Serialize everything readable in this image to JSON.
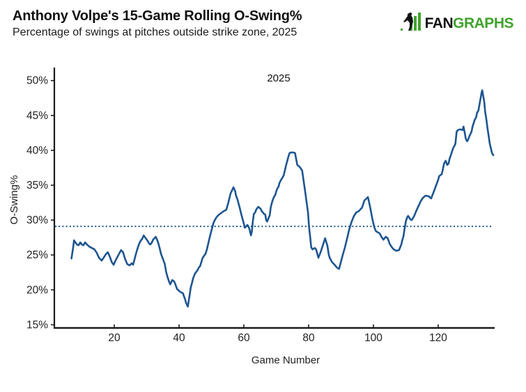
{
  "header": {
    "title": "Anthony Volpe's 15-Game Rolling O-Swing%",
    "subtitle": "Percentage of swings at pitches outside strike zone, 2025",
    "logo": {
      "fan": "FAN",
      "graphs": "GRAPHS",
      "green": "#3fa32c",
      "black": "#111111"
    }
  },
  "chart_data": {
    "type": "line",
    "legend_label": "2025",
    "xlabel": "Game Number",
    "ylabel": "O-Swing%",
    "x_tick_values": [
      20,
      40,
      60,
      80,
      100,
      120
    ],
    "x_tick_labels": [
      "20",
      "40",
      "60",
      "80",
      "100",
      "120"
    ],
    "y_tick_values": [
      15,
      20,
      25,
      30,
      35,
      40,
      45,
      50
    ],
    "y_tick_labels": [
      "15%",
      "20%",
      "25%",
      "30%",
      "35%",
      "40%",
      "45%",
      "50%"
    ],
    "xlim": [
      2,
      138
    ],
    "ylim": [
      14.5,
      52
    ],
    "grid": false,
    "average_line": {
      "value": 29.1,
      "style": "dotted",
      "color": "#1d5591"
    },
    "series": [
      {
        "name": "2025",
        "color": "#1d5591",
        "points": [
          [
            6.8,
            24.5
          ],
          [
            7.3,
            26.0
          ],
          [
            7.6,
            27.1
          ],
          [
            8.0,
            26.8
          ],
          [
            8.5,
            26.5
          ],
          [
            9.0,
            26.4
          ],
          [
            9.5,
            26.8
          ],
          [
            10.0,
            26.5
          ],
          [
            10.5,
            26.4
          ],
          [
            11.0,
            26.8
          ],
          [
            11.6,
            26.5
          ],
          [
            12.3,
            26.2
          ],
          [
            13.1,
            26.0
          ],
          [
            13.9,
            25.8
          ],
          [
            14.6,
            25.3
          ],
          [
            15.3,
            24.6
          ],
          [
            16.1,
            24.2
          ],
          [
            16.7,
            24.6
          ],
          [
            17.4,
            25.1
          ],
          [
            18.0,
            25.4
          ],
          [
            18.6,
            24.8
          ],
          [
            19.2,
            24.0
          ],
          [
            19.8,
            23.6
          ],
          [
            20.5,
            24.3
          ],
          [
            21.3,
            25.0
          ],
          [
            22.1,
            25.7
          ],
          [
            22.7,
            25.4
          ],
          [
            23.3,
            24.5
          ],
          [
            24.0,
            23.7
          ],
          [
            24.7,
            23.5
          ],
          [
            25.4,
            23.8
          ],
          [
            25.8,
            23.6
          ],
          [
            26.1,
            24.1
          ],
          [
            26.6,
            25.0
          ],
          [
            27.1,
            25.8
          ],
          [
            27.6,
            26.5
          ],
          [
            28.1,
            27.0
          ],
          [
            28.6,
            27.3
          ],
          [
            29.1,
            27.8
          ],
          [
            29.7,
            27.4
          ],
          [
            30.2,
            27.1
          ],
          [
            30.7,
            26.7
          ],
          [
            31.1,
            26.5
          ],
          [
            31.5,
            26.7
          ],
          [
            32.0,
            27.2
          ],
          [
            32.4,
            27.4
          ],
          [
            32.8,
            27.6
          ],
          [
            33.2,
            27.2
          ],
          [
            33.6,
            26.7
          ],
          [
            34.0,
            26.0
          ],
          [
            34.4,
            25.2
          ],
          [
            34.8,
            24.7
          ],
          [
            35.2,
            24.2
          ],
          [
            35.6,
            23.7
          ],
          [
            36.0,
            22.6
          ],
          [
            36.4,
            21.9
          ],
          [
            36.9,
            21.2
          ],
          [
            37.3,
            20.8
          ],
          [
            37.9,
            21.4
          ],
          [
            38.3,
            21.3
          ],
          [
            38.7,
            21.0
          ],
          [
            39.0,
            20.6
          ],
          [
            39.4,
            20.1
          ],
          [
            39.7,
            20.0
          ],
          [
            40.1,
            19.8
          ],
          [
            40.8,
            19.6
          ],
          [
            41.2,
            19.5
          ],
          [
            41.5,
            19.1
          ],
          [
            41.9,
            18.6
          ],
          [
            42.2,
            18.1
          ],
          [
            42.7,
            17.6
          ],
          [
            43.3,
            19.3
          ],
          [
            43.6,
            20.3
          ],
          [
            44.0,
            21.0
          ],
          [
            44.3,
            21.6
          ],
          [
            44.7,
            22.1
          ],
          [
            45.0,
            22.4
          ],
          [
            45.7,
            22.8
          ],
          [
            46.1,
            23.2
          ],
          [
            46.5,
            23.4
          ],
          [
            46.9,
            24.0
          ],
          [
            47.2,
            24.5
          ],
          [
            47.6,
            24.8
          ],
          [
            48.2,
            25.2
          ],
          [
            48.6,
            25.8
          ],
          [
            49.3,
            27.2
          ],
          [
            50.0,
            28.5
          ],
          [
            50.7,
            29.7
          ],
          [
            51.4,
            30.3
          ],
          [
            52.1,
            30.7
          ],
          [
            53.5,
            31.2
          ],
          [
            54.6,
            31.5
          ],
          [
            55.2,
            32.5
          ],
          [
            55.9,
            33.8
          ],
          [
            56.8,
            34.7
          ],
          [
            57.3,
            34.2
          ],
          [
            57.6,
            33.5
          ],
          [
            58.0,
            33.0
          ],
          [
            58.3,
            32.5
          ],
          [
            58.7,
            31.8
          ],
          [
            59.0,
            31.2
          ],
          [
            59.3,
            30.7
          ],
          [
            59.7,
            30.0
          ],
          [
            60.0,
            29.5
          ],
          [
            60.3,
            28.9
          ],
          [
            61.1,
            29.3
          ],
          [
            61.4,
            29.1
          ],
          [
            61.8,
            28.6
          ],
          [
            62.2,
            27.8
          ],
          [
            62.5,
            28.4
          ],
          [
            62.8,
            29.9
          ],
          [
            63.1,
            30.9
          ],
          [
            63.5,
            31.1
          ],
          [
            63.8,
            31.5
          ],
          [
            64.1,
            31.7
          ],
          [
            64.5,
            31.9
          ],
          [
            65.2,
            31.6
          ],
          [
            65.5,
            31.3
          ],
          [
            65.9,
            31.1
          ],
          [
            66.2,
            30.9
          ],
          [
            66.6,
            30.8
          ],
          [
            66.9,
            30.0
          ],
          [
            67.2,
            29.8
          ],
          [
            68.0,
            30.7
          ],
          [
            68.3,
            31.8
          ],
          [
            68.6,
            32.4
          ],
          [
            69.0,
            33.0
          ],
          [
            69.3,
            33.3
          ],
          [
            69.7,
            33.6
          ],
          [
            70.0,
            34.1
          ],
          [
            70.3,
            34.5
          ],
          [
            70.7,
            34.8
          ],
          [
            71.0,
            35.3
          ],
          [
            71.3,
            35.6
          ],
          [
            72.3,
            36.4
          ],
          [
            73.0,
            37.8
          ],
          [
            73.7,
            39.0
          ],
          [
            74.1,
            39.6
          ],
          [
            74.6,
            39.7
          ],
          [
            75.2,
            39.7
          ],
          [
            75.8,
            39.6
          ],
          [
            76.5,
            37.9
          ],
          [
            77.3,
            37.6
          ],
          [
            78.0,
            37.1
          ],
          [
            79.0,
            33.8
          ],
          [
            79.8,
            31.1
          ],
          [
            80.1,
            29.1
          ],
          [
            80.5,
            27.5
          ],
          [
            80.8,
            26.1
          ],
          [
            81.2,
            25.8
          ],
          [
            81.9,
            26.0
          ],
          [
            82.3,
            25.8
          ],
          [
            83.0,
            24.6
          ],
          [
            83.7,
            25.4
          ],
          [
            84.4,
            26.4
          ],
          [
            85.1,
            27.4
          ],
          [
            85.8,
            26.3
          ],
          [
            86.2,
            25.1
          ],
          [
            86.5,
            24.6
          ],
          [
            87.2,
            24.0
          ],
          [
            88.0,
            23.6
          ],
          [
            88.7,
            23.2
          ],
          [
            89.4,
            23.0
          ],
          [
            90.4,
            24.8
          ],
          [
            91.2,
            26.1
          ],
          [
            91.9,
            27.4
          ],
          [
            92.6,
            28.8
          ],
          [
            93.3,
            29.8
          ],
          [
            94.0,
            30.6
          ],
          [
            94.7,
            31.1
          ],
          [
            95.5,
            31.3
          ],
          [
            96.5,
            31.8
          ],
          [
            97.2,
            32.8
          ],
          [
            98.3,
            33.3
          ],
          [
            99.0,
            31.8
          ],
          [
            99.7,
            30.1
          ],
          [
            100.1,
            29.3
          ],
          [
            100.4,
            28.8
          ],
          [
            100.8,
            28.4
          ],
          [
            101.9,
            28.1
          ],
          [
            102.6,
            27.5
          ],
          [
            103.1,
            27.2
          ],
          [
            103.8,
            27.6
          ],
          [
            104.4,
            27.4
          ],
          [
            105.0,
            26.6
          ],
          [
            105.7,
            26.1
          ],
          [
            106.3,
            25.8
          ],
          [
            107.0,
            25.6
          ],
          [
            107.9,
            25.7
          ],
          [
            108.6,
            26.5
          ],
          [
            108.9,
            27.1
          ],
          [
            109.3,
            27.7
          ],
          [
            109.6,
            28.7
          ],
          [
            110.0,
            29.8
          ],
          [
            110.4,
            30.4
          ],
          [
            110.7,
            30.6
          ],
          [
            111.4,
            30.1
          ],
          [
            111.8,
            30.0
          ],
          [
            112.5,
            30.5
          ],
          [
            113.2,
            31.3
          ],
          [
            113.9,
            32.0
          ],
          [
            114.6,
            32.7
          ],
          [
            115.3,
            33.2
          ],
          [
            116.1,
            33.5
          ],
          [
            117.1,
            33.4
          ],
          [
            117.8,
            33.1
          ],
          [
            118.5,
            33.9
          ],
          [
            119.3,
            34.9
          ],
          [
            120.0,
            35.8
          ],
          [
            120.3,
            36.3
          ],
          [
            121.1,
            36.6
          ],
          [
            121.4,
            37.2
          ],
          [
            121.8,
            38.1
          ],
          [
            122.3,
            38.5
          ],
          [
            122.8,
            37.9
          ],
          [
            123.2,
            38.1
          ],
          [
            123.5,
            38.8
          ],
          [
            123.9,
            39.3
          ],
          [
            124.6,
            40.3
          ],
          [
            125.3,
            40.9
          ],
          [
            125.7,
            42.7
          ],
          [
            126.1,
            42.9
          ],
          [
            126.7,
            43.0
          ],
          [
            127.5,
            42.9
          ],
          [
            127.8,
            43.4
          ],
          [
            128.2,
            42.5
          ],
          [
            128.5,
            41.7
          ],
          [
            128.9,
            41.3
          ],
          [
            129.2,
            41.5
          ],
          [
            129.6,
            42.0
          ],
          [
            129.9,
            42.3
          ],
          [
            130.3,
            42.7
          ],
          [
            130.6,
            43.4
          ],
          [
            131.0,
            44.0
          ],
          [
            131.3,
            44.4
          ],
          [
            131.7,
            44.7
          ],
          [
            132.0,
            45.4
          ],
          [
            132.4,
            45.7
          ],
          [
            132.7,
            46.5
          ],
          [
            133.1,
            47.5
          ],
          [
            133.4,
            48.3
          ],
          [
            133.6,
            48.6
          ],
          [
            134.2,
            47.0
          ],
          [
            134.5,
            45.5
          ],
          [
            134.9,
            44.3
          ],
          [
            135.2,
            43.2
          ],
          [
            135.6,
            42.0
          ],
          [
            135.9,
            41.0
          ],
          [
            136.3,
            40.2
          ],
          [
            136.6,
            39.6
          ],
          [
            137.0,
            39.3
          ]
        ]
      }
    ]
  }
}
